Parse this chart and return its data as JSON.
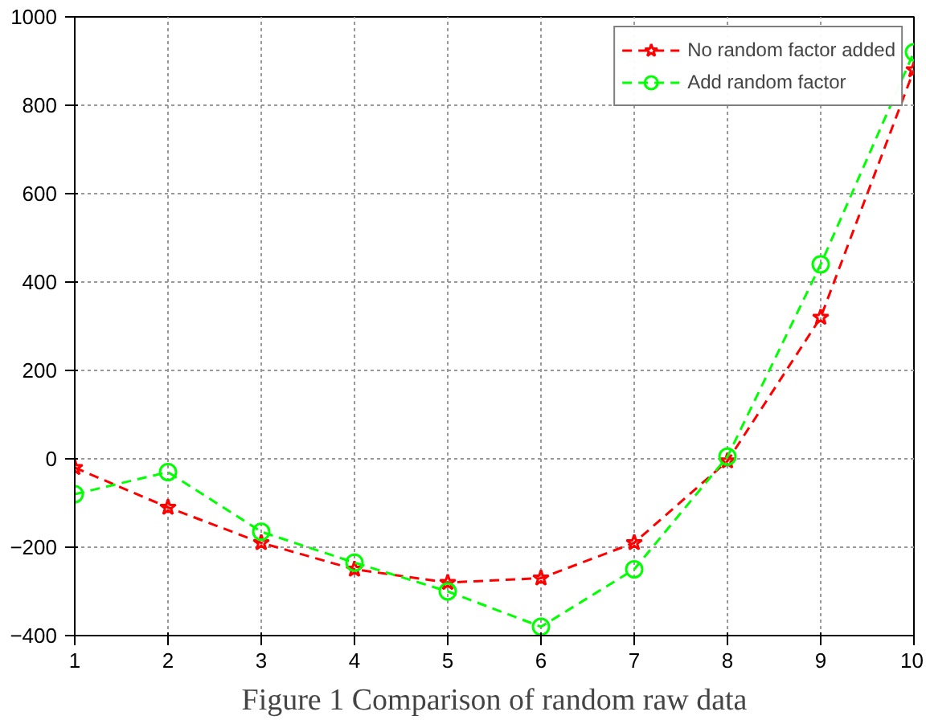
{
  "chart_data": {
    "type": "line",
    "x": [
      1,
      2,
      3,
      4,
      5,
      6,
      7,
      8,
      9,
      10
    ],
    "series": [
      {
        "name": "No random factor added",
        "color": "#ff0000",
        "marker": "star",
        "values": [
          -20,
          -110,
          -190,
          -250,
          -280,
          -270,
          -190,
          -5,
          320,
          880
        ]
      },
      {
        "name": "Add random factor",
        "color": "#00ff00",
        "marker": "circle",
        "values": [
          -80,
          -30,
          -165,
          -235,
          -300,
          -380,
          -250,
          5,
          440,
          920
        ]
      }
    ],
    "xlim": [
      1,
      10
    ],
    "xticks": [
      1,
      2,
      3,
      4,
      5,
      6,
      7,
      8,
      9,
      10
    ],
    "ylim": [
      -400,
      1000
    ],
    "yticks": [
      -400,
      -200,
      0,
      200,
      400,
      600,
      800,
      1000
    ],
    "grid": true,
    "legend": "top right",
    "line_style": "dashed",
    "annotations": [
      "Figure 1 Comparison of random raw data"
    ]
  }
}
